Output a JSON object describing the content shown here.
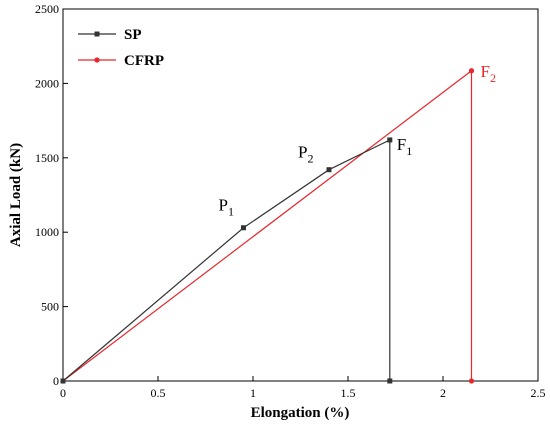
{
  "chart_data": {
    "type": "line",
    "xlabel": "Elongation (%)",
    "ylabel": "Axial Load (kN)",
    "xlim": [
      0,
      2.5
    ],
    "ylim": [
      0,
      2500
    ],
    "x_ticks": [
      0,
      0.5,
      1,
      1.5,
      2,
      2.5
    ],
    "x_tick_labels": [
      "0",
      "0.5",
      "1",
      "1.5",
      "2",
      "2.5"
    ],
    "y_ticks": [
      0,
      500,
      1000,
      1500,
      2000,
      2500
    ],
    "y_tick_labels": [
      "0",
      "500",
      "1000",
      "1500",
      "2000",
      "2500"
    ],
    "grid": false,
    "legend_position": "top-left",
    "series": [
      {
        "name": "SP",
        "color": "#333333",
        "marker": "square",
        "points": [
          [
            0,
            0
          ],
          [
            0.95,
            1030
          ],
          [
            1.4,
            1420
          ],
          [
            1.72,
            1620
          ],
          [
            1.72,
            0
          ]
        ]
      },
      {
        "name": "CFRP",
        "color": "#e8272d",
        "marker": "circle",
        "points": [
          [
            0,
            0
          ],
          [
            2.15,
            2085
          ],
          [
            2.15,
            0
          ]
        ]
      }
    ],
    "annotations": [
      {
        "main": "P",
        "sub": "1",
        "x": 0.95,
        "y": 1030,
        "color": "#000000"
      },
      {
        "main": "P",
        "sub": "2",
        "x": 1.4,
        "y": 1420,
        "color": "#000000"
      },
      {
        "main": "F",
        "sub": "1",
        "x": 1.72,
        "y": 1620,
        "color": "#000000"
      },
      {
        "main": "F",
        "sub": "2",
        "x": 2.15,
        "y": 2085,
        "color": "#e8272d"
      }
    ]
  }
}
